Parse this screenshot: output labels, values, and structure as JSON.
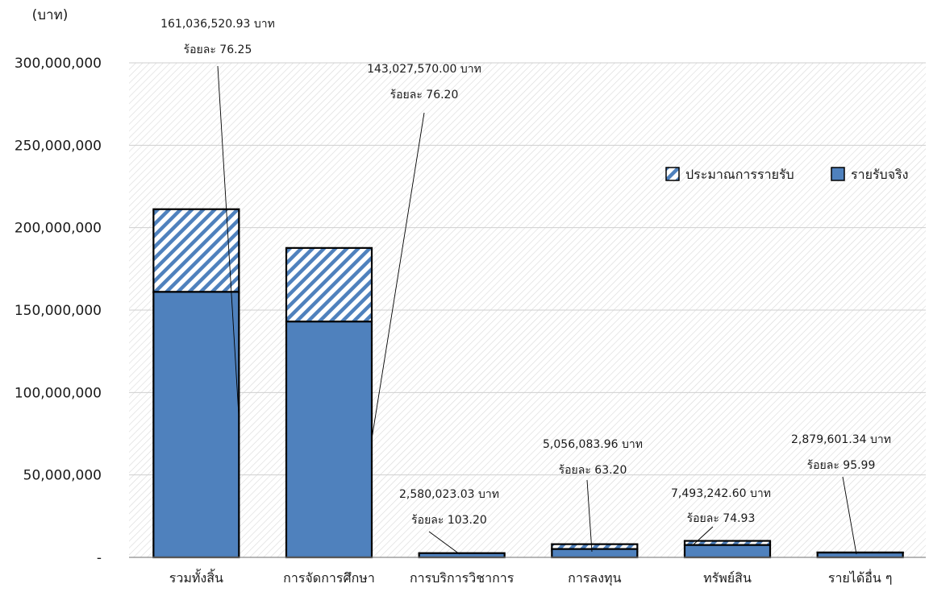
{
  "chart_data": {
    "type": "bar",
    "stacked": true,
    "ylabel": "(บาท)",
    "ylim": [
      0,
      300000000
    ],
    "yticks": [
      0,
      50000000,
      100000000,
      150000000,
      200000000,
      250000000,
      300000000
    ],
    "ytick_labels": [
      "-",
      "50,000,000",
      "100,000,000",
      "150,000,000",
      "200,000,000",
      "250,000,000",
      "300,000,000"
    ],
    "categories": [
      "รวมทั้งสิ้น",
      "การจัดการศึกษา",
      "การบริการวิชาการ",
      "การลงทุน",
      "ทรัพย์สิน",
      "รายได้อื่น ๆ"
    ],
    "series": [
      {
        "name": "รายรับจริง",
        "color": "#4f81bd",
        "values": [
          161036520.93,
          143027570.0,
          2580023.03,
          5056083.96,
          7493242.6,
          2879601.34
        ]
      },
      {
        "name": "ประมาณการรายรับ",
        "color": "#4f81bd",
        "pattern": "diagonal-hatch",
        "totals": [
          211200000,
          187700000,
          2500000,
          8000000,
          10000000,
          3000000
        ]
      }
    ],
    "annotations": [
      {
        "category": "รวมทั้งสิ้น",
        "amount": "161,036,520.93 บาท",
        "percent": "ร้อยละ 76.25"
      },
      {
        "category": "การจัดการศึกษา",
        "amount": "143,027,570.00 บาท",
        "percent": "ร้อยละ 76.20"
      },
      {
        "category": "การบริการวิชาการ",
        "amount": "2,580,023.03 บาท",
        "percent": "ร้อยละ 103.20"
      },
      {
        "category": "การลงทุน",
        "amount": "5,056,083.96 บาท",
        "percent": "ร้อยละ 63.20"
      },
      {
        "category": "ทรัพย์สิน",
        "amount": "7,493,242.60 บาท",
        "percent": "ร้อยละ 74.93"
      },
      {
        "category": "รายได้อื่น ๆ",
        "amount": "2,879,601.34 บาท",
        "percent": "ร้อยละ 95.99"
      }
    ],
    "legend": {
      "position": "right",
      "entries": [
        "ประมาณการรายรับ",
        "รายรับจริง"
      ]
    },
    "grid": true
  }
}
